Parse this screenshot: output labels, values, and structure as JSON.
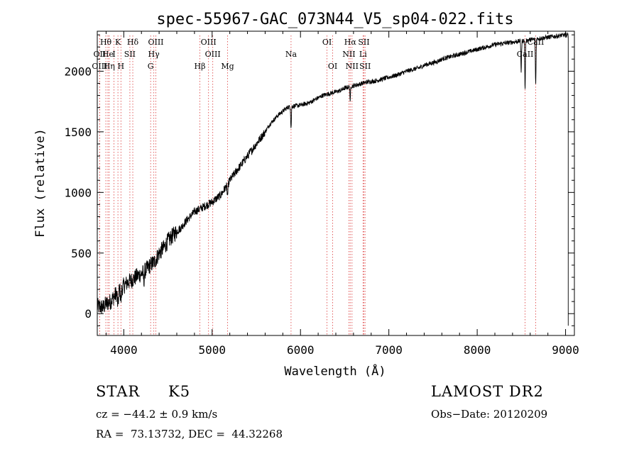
{
  "chart_data": {
    "type": "line",
    "title": "spec-55967-GAC_073N44_V5_sp04-022.fits",
    "xlabel": "Wavelength (Å)",
    "ylabel": "Flux (relative)",
    "xlim": [
      3700,
      9100
    ],
    "ylim": [
      -180,
      2330
    ],
    "xticks": [
      4000,
      5000,
      6000,
      7000,
      8000,
      9000
    ],
    "yticks": [
      0,
      500,
      1000,
      1500,
      2000
    ],
    "grid": false,
    "line_color": "#000000",
    "marker_line_color": "#e05050",
    "series": [
      {
        "x": [
          3700,
          3760,
          3800,
          3850,
          3900,
          3950,
          4000,
          4050,
          4100,
          4150,
          4200,
          4250,
          4300,
          4350,
          4400,
          4450,
          4500,
          4550,
          4600,
          4650,
          4700,
          4750,
          4800,
          4850,
          4900,
          4950,
          5000,
          5050,
          5100,
          5150,
          5200,
          5250,
          5300,
          5350,
          5400,
          5450,
          5500,
          5550,
          5600,
          5650,
          5700,
          5750,
          5800,
          5850,
          5900,
          5950,
          6000,
          6050,
          6100,
          6150,
          6200,
          6250,
          6300,
          6350,
          6400,
          6450,
          6500,
          6550,
          6600,
          6650,
          6700,
          6750,
          6800,
          6850,
          6900,
          6950,
          7000,
          7050,
          7100,
          7150,
          7200,
          7250,
          7300,
          7350,
          7400,
          7450,
          7500,
          7550,
          7600,
          7650,
          7700,
          7750,
          7800,
          7850,
          7900,
          7950,
          8000,
          8050,
          8100,
          8150,
          8200,
          8250,
          8300,
          8350,
          8400,
          8450,
          8500,
          8550,
          8600,
          8650,
          8700,
          8750,
          8800,
          8850,
          8900,
          8950,
          9000
        ],
        "y": [
          60,
          50,
          80,
          100,
          150,
          200,
          230,
          260,
          280,
          310,
          330,
          360,
          400,
          430,
          500,
          540,
          600,
          640,
          680,
          710,
          760,
          800,
          840,
          860,
          880,
          900,
          920,
          950,
          980,
          1040,
          1100,
          1150,
          1200,
          1250,
          1300,
          1350,
          1400,
          1450,
          1500,
          1560,
          1600,
          1640,
          1670,
          1700,
          1710,
          1715,
          1720,
          1730,
          1740,
          1760,
          1780,
          1800,
          1810,
          1820,
          1830,
          1840,
          1860,
          1870,
          1880,
          1890,
          1900,
          1910,
          1915,
          1920,
          1930,
          1940,
          1950,
          1960,
          1970,
          1985,
          2000,
          2010,
          2020,
          2030,
          2050,
          2060,
          2070,
          2080,
          2100,
          2110,
          2120,
          2130,
          2140,
          2150,
          2160,
          2170,
          2180,
          2190,
          2200,
          2210,
          2220,
          2225,
          2230,
          2235,
          2240,
          2245,
          2250,
          2255,
          2260,
          2265,
          2270,
          2275,
          2280,
          2285,
          2290,
          2295,
          2300
        ]
      }
    ],
    "line_markers": [
      {
        "label": "Hθ",
        "wavelength": 3797,
        "row": 0
      },
      {
        "label": "K",
        "wavelength": 3934,
        "row": 0
      },
      {
        "label": "Hδ",
        "wavelength": 4102,
        "row": 0
      },
      {
        "label": "OIII",
        "wavelength": 4363,
        "row": 0
      },
      {
        "label": "OIII",
        "wavelength": 4959,
        "row": 0
      },
      {
        "label": "OI",
        "wavelength": 6300,
        "row": 0
      },
      {
        "label": "Hα",
        "wavelength": 6563,
        "row": 0
      },
      {
        "label": "SII",
        "wavelength": 6717,
        "row": 0
      },
      {
        "label": "CaII",
        "wavelength": 8662,
        "row": 0
      },
      {
        "label": "OII",
        "wavelength": 3727,
        "row": 1
      },
      {
        "label": "He",
        "wavelength": 3820,
        "row": 1
      },
      {
        "label": "I",
        "wavelength": 3889,
        "row": 1
      },
      {
        "label": "SII",
        "wavelength": 4069,
        "row": 1
      },
      {
        "label": "Hγ",
        "wavelength": 4340,
        "row": 1
      },
      {
        "label": "OIII",
        "wavelength": 5007,
        "row": 1
      },
      {
        "label": "Na",
        "wavelength": 5893,
        "row": 1
      },
      {
        "label": "NII",
        "wavelength": 6548,
        "row": 1
      },
      {
        "label": "Li",
        "wavelength": 6708,
        "row": 1
      },
      {
        "label": "CaII",
        "wavelength": 8542,
        "row": 1
      },
      {
        "label": "OIII",
        "wavelength": 3727,
        "row": 2
      },
      {
        "label": "Hη",
        "wavelength": 3835,
        "row": 2
      },
      {
        "label": "H",
        "wavelength": 3968,
        "row": 2
      },
      {
        "label": "G",
        "wavelength": 4304,
        "row": 2
      },
      {
        "label": "Hβ",
        "wavelength": 4861,
        "row": 2
      },
      {
        "label": "Mg",
        "wavelength": 5175,
        "row": 2
      },
      {
        "label": "OI",
        "wavelength": 6364,
        "row": 2
      },
      {
        "label": "NII",
        "wavelength": 6583,
        "row": 2
      },
      {
        "label": "SII",
        "wavelength": 6731,
        "row": 2
      }
    ]
  },
  "info": {
    "star_label": "STAR",
    "spectral_type": "K5",
    "survey": "LAMOST DR2",
    "cz": "cz = −44.2 ± 0.9 km/s",
    "obs_date": "Obs−Date: 20120209",
    "coords": "RA =  73.13732, DEC =  44.32268"
  }
}
